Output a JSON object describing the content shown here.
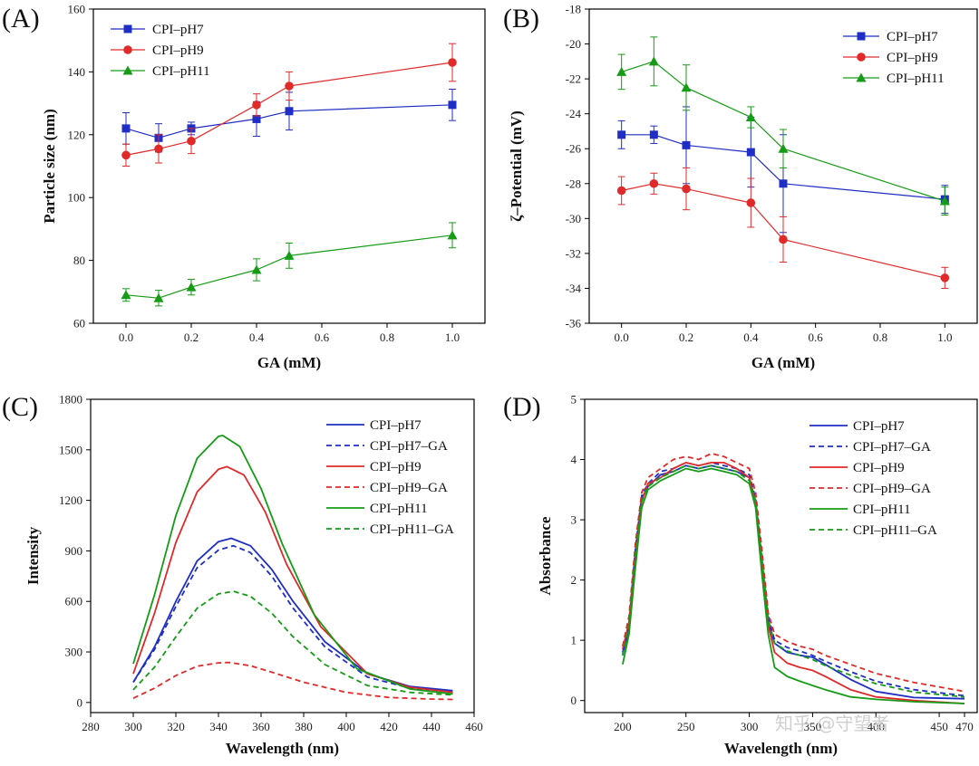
{
  "watermark": "知乎 @守望者",
  "colors": {
    "blue": "#1f2ec4",
    "red": "#e02a2a",
    "green": "#169b16",
    "axis": "#000000"
  },
  "chart_data": [
    {
      "panel_label": "(A)",
      "type": "line",
      "xlabel": "GA (mM)",
      "ylabel": "Particle size (nm)",
      "xlim": [
        -0.1,
        1.1
      ],
      "ylim": [
        60,
        160
      ],
      "xticks": [
        0.0,
        0.2,
        0.4,
        0.6,
        0.8,
        1.0
      ],
      "xtick_labels": [
        "0.0",
        "0.2",
        "0.4",
        "0.6",
        "0.8",
        "1.0"
      ],
      "yticks": [
        60,
        80,
        100,
        120,
        140,
        160
      ],
      "ytick_labels": [
        "60",
        "80",
        "100",
        "120",
        "140",
        "160"
      ],
      "legend_position": "top-left",
      "series": [
        {
          "name": "CPI–pH7",
          "color": "#1f2ec4",
          "marker": "square",
          "x": [
            0.0,
            0.1,
            0.2,
            0.4,
            0.5,
            1.0
          ],
          "y": [
            122,
            119,
            122,
            125,
            127.5,
            129.5
          ],
          "err": [
            5,
            4.5,
            2,
            5.5,
            6,
            5
          ]
        },
        {
          "name": "CPI–pH9",
          "color": "#e02a2a",
          "marker": "circle",
          "x": [
            0.0,
            0.1,
            0.2,
            0.4,
            0.5,
            1.0
          ],
          "y": [
            113.5,
            115.5,
            118,
            129.5,
            135.5,
            143
          ],
          "err": [
            3.5,
            4.5,
            4,
            3.5,
            4.5,
            6
          ]
        },
        {
          "name": "CPI–pH11",
          "color": "#169b16",
          "marker": "triangle",
          "x": [
            0.0,
            0.1,
            0.2,
            0.4,
            0.5,
            1.0
          ],
          "y": [
            69,
            68,
            71.5,
            77,
            81.5,
            88
          ],
          "err": [
            2,
            2.5,
            2.5,
            3.5,
            4,
            4
          ]
        }
      ]
    },
    {
      "panel_label": "(B)",
      "type": "line",
      "xlabel": "GA (mM)",
      "ylabel": "ζ–Potential (mV)",
      "xlim": [
        -0.1,
        1.1
      ],
      "ylim": [
        -36,
        -18
      ],
      "xticks": [
        0.0,
        0.2,
        0.4,
        0.6,
        0.8,
        1.0
      ],
      "xtick_labels": [
        "0.0",
        "0.2",
        "0.4",
        "0.6",
        "0.8",
        "1.0"
      ],
      "yticks": [
        -36,
        -34,
        -32,
        -30,
        -28,
        -26,
        -24,
        -22,
        -20,
        -18
      ],
      "ytick_labels": [
        "-36",
        "-34",
        "-32",
        "-30",
        "-28",
        "-26",
        "-24",
        "-22",
        "-20",
        "-18"
      ],
      "legend_position": "top-right",
      "series": [
        {
          "name": "CPI–pH7",
          "color": "#1f2ec4",
          "marker": "square",
          "x": [
            0.0,
            0.1,
            0.2,
            0.4,
            0.5,
            1.0
          ],
          "y": [
            -25.2,
            -25.2,
            -25.8,
            -26.2,
            -28.0,
            -28.9
          ],
          "err": [
            0.8,
            0.5,
            2.2,
            2.0,
            2.8,
            0.8
          ]
        },
        {
          "name": "CPI–pH9",
          "color": "#e02a2a",
          "marker": "circle",
          "x": [
            0.0,
            0.1,
            0.2,
            0.4,
            0.5,
            1.0
          ],
          "y": [
            -28.4,
            -28.0,
            -28.3,
            -29.1,
            -31.2,
            -33.4
          ],
          "err": [
            0.8,
            0.6,
            1.2,
            1.4,
            1.3,
            0.6
          ]
        },
        {
          "name": "CPI–pH11",
          "color": "#169b16",
          "marker": "triangle",
          "x": [
            0.0,
            0.1,
            0.2,
            0.4,
            0.5,
            1.0
          ],
          "y": [
            -21.6,
            -21.0,
            -22.5,
            -24.2,
            -26.0,
            -29.0
          ],
          "err": [
            1.0,
            1.4,
            1.3,
            0.6,
            1.1,
            0.8
          ]
        }
      ]
    },
    {
      "panel_label": "(C)",
      "type": "line",
      "xlabel": "Wavelength (nm)",
      "ylabel": "Intensity",
      "xlim": [
        280,
        460
      ],
      "ylim": [
        -60,
        1800
      ],
      "xticks": [
        280,
        300,
        320,
        340,
        360,
        380,
        400,
        420,
        440,
        460
      ],
      "xtick_labels": [
        "280",
        "300",
        "320",
        "340",
        "360",
        "380",
        "400",
        "420",
        "440",
        "460"
      ],
      "yticks": [
        0,
        300,
        600,
        900,
        1200,
        1500,
        1800
      ],
      "ytick_labels": [
        "0",
        "300",
        "600",
        "900",
        "1200",
        "1500",
        "1800"
      ],
      "legend_position": "top-right",
      "series": [
        {
          "name": "CPI–pH7",
          "color": "#1f2ec4",
          "dash": false,
          "x": [
            300,
            310,
            320,
            330,
            340,
            346,
            355,
            365,
            375,
            390,
            410,
            430,
            450
          ],
          "y": [
            120,
            330,
            600,
            840,
            955,
            975,
            930,
            790,
            600,
            360,
            170,
            95,
            70
          ]
        },
        {
          "name": "CPI–pH7–GA",
          "color": "#1f2ec4",
          "dash": true,
          "x": [
            300,
            310,
            320,
            330,
            340,
            347,
            355,
            365,
            375,
            390,
            410,
            430,
            450
          ],
          "y": [
            120,
            315,
            570,
            800,
            905,
            930,
            890,
            750,
            560,
            330,
            150,
            85,
            65
          ]
        },
        {
          "name": "CPI–pH9",
          "color": "#e02a2a",
          "dash": false,
          "x": [
            300,
            310,
            320,
            330,
            340,
            344,
            352,
            362,
            372,
            388,
            410,
            430,
            450
          ],
          "y": [
            170,
            530,
            950,
            1250,
            1385,
            1400,
            1350,
            1130,
            820,
            450,
            170,
            90,
            60
          ]
        },
        {
          "name": "CPI–pH9–GA",
          "color": "#e02a2a",
          "dash": true,
          "x": [
            300,
            310,
            320,
            330,
            340,
            345,
            355,
            365,
            380,
            400,
            420,
            440,
            450
          ],
          "y": [
            25,
            85,
            160,
            215,
            235,
            238,
            218,
            180,
            120,
            60,
            30,
            20,
            18
          ]
        },
        {
          "name": "CPI–pH11",
          "color": "#169b16",
          "dash": false,
          "x": [
            300,
            310,
            320,
            330,
            340,
            342,
            350,
            360,
            370,
            385,
            405,
            430,
            450
          ],
          "y": [
            230,
            640,
            1110,
            1450,
            1580,
            1585,
            1520,
            1270,
            940,
            520,
            200,
            80,
            50
          ]
        },
        {
          "name": "CPI–pH11–GA",
          "color": "#169b16",
          "dash": true,
          "x": [
            300,
            310,
            320,
            330,
            340,
            347,
            355,
            365,
            375,
            390,
            410,
            430,
            450
          ],
          "y": [
            75,
            210,
            390,
            560,
            645,
            660,
            630,
            530,
            390,
            225,
            100,
            60,
            45
          ]
        }
      ]
    },
    {
      "panel_label": "(D)",
      "type": "line",
      "xlabel": "Wavelength (nm)",
      "ylabel": "Absorbance",
      "xlim": [
        170,
        480
      ],
      "ylim": [
        -0.2,
        5
      ],
      "xticks": [
        200,
        250,
        300,
        350,
        400,
        450,
        470
      ],
      "xtick_labels": [
        "200",
        "250",
        "300",
        "350",
        "400",
        "450",
        "470"
      ],
      "yticks": [
        0,
        1,
        2,
        3,
        4,
        5
      ],
      "ytick_labels": [
        "0",
        "1",
        "2",
        "3",
        "4",
        "5"
      ],
      "legend_position": "top-right",
      "series": [
        {
          "name": "CPI–pH7",
          "color": "#1f2ec4",
          "dash": false,
          "x": [
            200,
            205,
            210,
            215,
            220,
            230,
            240,
            250,
            260,
            270,
            280,
            290,
            300,
            305,
            310,
            315,
            320,
            330,
            340,
            350,
            360,
            380,
            400,
            430,
            470
          ],
          "y": [
            0.75,
            1.2,
            2.4,
            3.35,
            3.55,
            3.75,
            3.8,
            3.9,
            3.85,
            3.9,
            3.85,
            3.8,
            3.7,
            3.3,
            2.3,
            1.3,
            0.95,
            0.8,
            0.75,
            0.72,
            0.6,
            0.35,
            0.15,
            0.05,
            0.03
          ]
        },
        {
          "name": "CPI–pH7–GA",
          "color": "#1f2ec4",
          "dash": true,
          "x": [
            200,
            205,
            210,
            215,
            220,
            230,
            240,
            250,
            260,
            270,
            280,
            290,
            300,
            305,
            310,
            315,
            320,
            330,
            340,
            350,
            360,
            380,
            400,
            430,
            470
          ],
          "y": [
            0.8,
            1.3,
            2.5,
            3.4,
            3.6,
            3.8,
            3.85,
            3.95,
            3.9,
            3.95,
            3.9,
            3.85,
            3.75,
            3.35,
            2.4,
            1.4,
            1.0,
            0.88,
            0.82,
            0.75,
            0.65,
            0.48,
            0.32,
            0.18,
            0.08
          ]
        },
        {
          "name": "CPI–pH9",
          "color": "#e02a2a",
          "dash": false,
          "x": [
            200,
            205,
            210,
            215,
            220,
            230,
            240,
            250,
            260,
            270,
            280,
            290,
            300,
            305,
            310,
            315,
            320,
            330,
            340,
            350,
            360,
            380,
            400,
            430,
            470
          ],
          "y": [
            0.85,
            1.3,
            2.3,
            3.3,
            3.6,
            3.7,
            3.85,
            3.95,
            3.9,
            3.95,
            3.95,
            3.85,
            3.7,
            3.3,
            2.3,
            1.25,
            0.8,
            0.62,
            0.55,
            0.5,
            0.4,
            0.18,
            0.06,
            0.0,
            -0.05
          ]
        },
        {
          "name": "CPI–pH9–GA",
          "color": "#e02a2a",
          "dash": true,
          "x": [
            200,
            205,
            210,
            215,
            220,
            230,
            240,
            250,
            260,
            270,
            280,
            290,
            300,
            305,
            310,
            315,
            320,
            330,
            340,
            350,
            360,
            380,
            400,
            430,
            470
          ],
          "y": [
            0.9,
            1.4,
            2.6,
            3.45,
            3.7,
            3.85,
            4.0,
            4.05,
            4.0,
            4.1,
            4.05,
            3.95,
            3.85,
            3.45,
            2.5,
            1.45,
            1.1,
            0.98,
            0.9,
            0.85,
            0.75,
            0.6,
            0.45,
            0.3,
            0.15
          ]
        },
        {
          "name": "CPI–pH11",
          "color": "#169b16",
          "dash": false,
          "x": [
            200,
            205,
            210,
            215,
            220,
            230,
            240,
            250,
            260,
            270,
            280,
            290,
            300,
            305,
            310,
            315,
            320,
            330,
            340,
            350,
            360,
            380,
            400,
            430,
            470
          ],
          "y": [
            0.6,
            1.1,
            2.2,
            3.2,
            3.5,
            3.65,
            3.75,
            3.85,
            3.8,
            3.85,
            3.8,
            3.75,
            3.6,
            3.2,
            2.1,
            1.1,
            0.55,
            0.4,
            0.32,
            0.25,
            0.18,
            0.06,
            0.02,
            -0.02,
            -0.05
          ]
        },
        {
          "name": "CPI–pH11–GA",
          "color": "#169b16",
          "dash": true,
          "x": [
            200,
            205,
            210,
            215,
            220,
            230,
            240,
            250,
            260,
            270,
            280,
            290,
            300,
            305,
            310,
            315,
            320,
            330,
            340,
            350,
            360,
            380,
            400,
            430,
            470
          ],
          "y": [
            0.75,
            1.25,
            2.4,
            3.3,
            3.55,
            3.7,
            3.8,
            3.9,
            3.85,
            3.9,
            3.85,
            3.8,
            3.65,
            3.3,
            2.35,
            1.35,
            0.95,
            0.82,
            0.75,
            0.68,
            0.58,
            0.42,
            0.28,
            0.14,
            0.06
          ]
        }
      ]
    }
  ]
}
